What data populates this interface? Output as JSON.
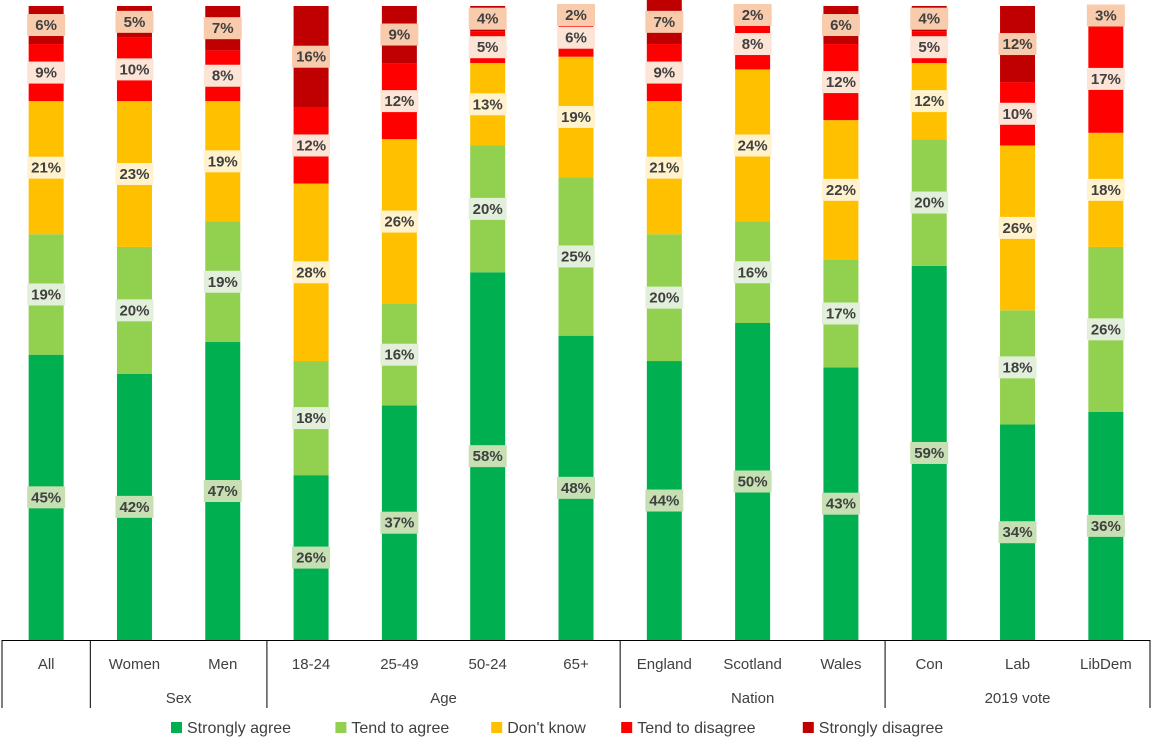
{
  "chart_data": {
    "type": "bar",
    "stacked": true,
    "orientation": "vertical",
    "categories": [
      "All",
      "Women",
      "Men",
      "18-24",
      "25-49",
      "50-24",
      "65+",
      "England",
      "Scotland",
      "Wales",
      "Con",
      "Lab",
      "LibDem"
    ],
    "category_groups": [
      {
        "label": "",
        "categories": [
          "All"
        ]
      },
      {
        "label": "Sex",
        "categories": [
          "Women",
          "Men"
        ]
      },
      {
        "label": "Age",
        "categories": [
          "18-24",
          "25-49",
          "50-24",
          "65+"
        ]
      },
      {
        "label": "Nation",
        "categories": [
          "England",
          "Scotland",
          "Wales"
        ]
      },
      {
        "label": "2019 vote",
        "categories": [
          "Con",
          "Lab",
          "LibDem"
        ]
      }
    ],
    "series": [
      {
        "name": "Strongly agree",
        "color": "#00B050",
        "label_bg": "#C6E0B4",
        "values": [
          45,
          42,
          47,
          26,
          37,
          58,
          48,
          44,
          50,
          43,
          59,
          34,
          36
        ],
        "labels": [
          "45%",
          "42%",
          "47%",
          "26%",
          "37%",
          "58%",
          "48%",
          "44%",
          "50%",
          "43%",
          "59%",
          "34%",
          "36%"
        ]
      },
      {
        "name": "Tend to agree",
        "color": "#92D050",
        "label_bg": "#E2EFDA",
        "values": [
          19,
          20,
          19,
          18,
          16,
          20,
          25,
          20,
          16,
          17,
          20,
          18,
          26
        ],
        "labels": [
          "19%",
          "20%",
          "19%",
          "18%",
          "16%",
          "20%",
          "25%",
          "20%",
          "16%",
          "17%",
          "20%",
          "18%",
          "26%"
        ]
      },
      {
        "name": "Don't know",
        "color": "#FFC000",
        "label_bg": "#FFF2CC",
        "values": [
          21,
          23,
          19,
          28,
          26,
          13,
          19,
          21,
          24,
          22,
          12,
          26,
          18
        ],
        "labels": [
          "21%",
          "23%",
          "19%",
          "28%",
          "26%",
          "13%",
          "19%",
          "21%",
          "24%",
          "22%",
          "12%",
          "26%",
          "18%"
        ]
      },
      {
        "name": "Tend to disagree",
        "color": "#FF0000",
        "label_bg": "#FCE4D6",
        "values": [
          9,
          10,
          8,
          12,
          12,
          5,
          6,
          9,
          8,
          12,
          5,
          10,
          17
        ],
        "labels": [
          "9%",
          "10%",
          "8%",
          "12%",
          "12%",
          "5%",
          "6%",
          "9%",
          "8%",
          "12%",
          "5%",
          "10%",
          "17%"
        ]
      },
      {
        "name": "Strongly disagree",
        "color": "#C00000",
        "label_bg": "#F8CBAD",
        "values": [
          6,
          5,
          7,
          16,
          9,
          4,
          2,
          7,
          2,
          6,
          4,
          12,
          3
        ],
        "labels": [
          "6%",
          "5%",
          "7%",
          "16%",
          "9%",
          "4%",
          "2%",
          "7%",
          "2%",
          "6%",
          "4%",
          "12%",
          "3%"
        ]
      }
    ],
    "title": "",
    "xlabel": "",
    "ylabel": "",
    "ylim": [
      0,
      100
    ],
    "grid": false,
    "legend_position": "bottom",
    "axis_line_color": "#000000",
    "text_color": "#404040"
  }
}
